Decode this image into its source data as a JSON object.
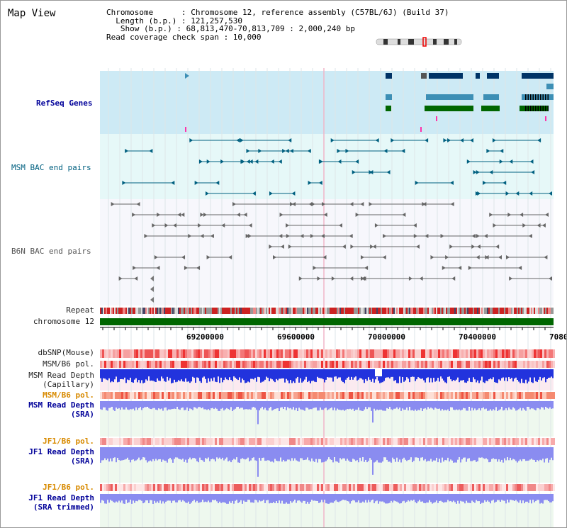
{
  "title": "Map View",
  "info": {
    "line1": "Chromosome      : Chromosome 12, reference assembly (C57BL/6J) (Build 37)",
    "line2": "  Length (b.p.) : 121,257,530",
    "line3": "   Show (b.p.) : 68,813,470-70,813,709 : 2,000,240 bp",
    "line4": "Read coverage check span : 10,000"
  },
  "tracks": {
    "refseq": "RefSeq Genes",
    "msm_bac": "MSM BAC end pairs",
    "b6n_bac": "B6N BAC end pairs",
    "repeat": "Repeat",
    "chromosome": "chromosome 12",
    "dbsnp": "dbSNP(Mouse)",
    "msm_b6_pol_1": "MSM/B6 pol.",
    "msm_read_depth_cap_1": "MSM Read Depth",
    "msm_read_depth_cap_2": "(Capillary)",
    "msm_b6_pol_2": "MSM/B6 pol.",
    "msm_read_depth_sra_1": "MSM Read Depth",
    "msm_read_depth_sra_2": "(SRA)",
    "jf1_b6_pol_1": "JF1/B6 pol.",
    "jf1_read_depth_1": "JF1 Read Depth",
    "jf1_read_depth_2": "(SRA)",
    "jf1_b6_pol_2": "JF1/B6 pol.",
    "jf1_trim_1": "JF1 Read Depth",
    "jf1_trim_2": "(SRA trimmed)"
  },
  "axis": {
    "ticks": [
      "69200000",
      "69600000",
      "70000000",
      "70400000",
      "7080"
    ]
  },
  "colors": {
    "refseq_bg": "#cdeaf5",
    "bac_bg": "#e6f8f8",
    "gene_dark": "#003366",
    "gene_mid": "#3d8fb5",
    "gene_green": "#006600",
    "msm_line": "#006080",
    "b6n_line": "#666666",
    "chrom": "#006600",
    "depth_blue": "#2233dd",
    "depth_light": "#8a8cf0",
    "orange_label": "#d88a00"
  }
}
